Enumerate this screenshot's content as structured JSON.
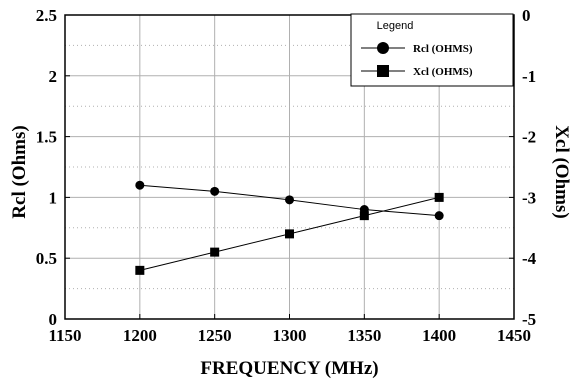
{
  "chart_data": {
    "type": "line",
    "xlabel": "FREQUENCY (MHz)",
    "ylabel_left": "Rcl (Ohms)",
    "ylabel_right": "Xcl (Ohms)",
    "xlim": [
      1150,
      1450
    ],
    "ylim_left": [
      0,
      2.5
    ],
    "ylim_right": [
      -5,
      0
    ],
    "x_ticks": [
      "1150",
      "1200",
      "1250",
      "1300",
      "1350",
      "1400",
      "1450"
    ],
    "y_left_ticks": [
      "0",
      "0.5",
      "1",
      "1.5",
      "2",
      "2.5"
    ],
    "y_right_ticks": [
      "-5",
      "-4",
      "-3",
      "-2",
      "-1",
      "0"
    ],
    "grid": true,
    "legend": {
      "title": "Legend",
      "position": "top-right",
      "entries": [
        "Rcl (OHMS)",
        "Xcl (OHMS)"
      ]
    },
    "series": [
      {
        "name": "Rcl (OHMS)",
        "axis": "left",
        "marker": "circle",
        "x": [
          1200,
          1250,
          1300,
          1350,
          1400
        ],
        "values": [
          1.1,
          1.05,
          0.98,
          0.9,
          0.85
        ]
      },
      {
        "name": "Xcl (OHMS)",
        "axis": "right",
        "marker": "square",
        "x": [
          1200,
          1250,
          1300,
          1350,
          1400
        ],
        "values": [
          -4.2,
          -3.9,
          -3.6,
          -3.3,
          -3.0
        ]
      }
    ],
    "colors": {
      "line": "#000000",
      "grid": "#b0b0b0",
      "background": "#ffffff"
    }
  }
}
